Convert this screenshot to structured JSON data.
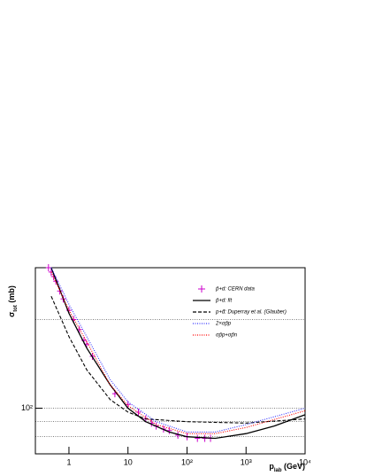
{
  "chart_data": {
    "type": "line",
    "x_label": {
      "main": "p",
      "sub": "lab",
      "unit": " (GeV)"
    },
    "y_label": {
      "main": "σ",
      "sub": "tot",
      "unit": " (mb)"
    },
    "xlog": true,
    "ylog": true,
    "xlim": [
      0.27,
      10000
    ],
    "ylim": [
      70,
      300
    ],
    "xticks": [
      1,
      10,
      {
        "value": 100,
        "label": "10²"
      },
      {
        "value": 1000,
        "label": "10³"
      },
      {
        "value": 10000,
        "label": "10⁴"
      }
    ],
    "yticks": [
      {
        "value": 100,
        "label": "10²"
      }
    ],
    "hlines": [
      200,
      100,
      90,
      80
    ],
    "legend": "top-right",
    "series": [
      {
        "name": "p̄+d: CERN data",
        "color": "#cc00cc",
        "style": "marker",
        "x": [
          0.45,
          0.5,
          0.55,
          0.6,
          0.7,
          0.8,
          1.0,
          1.2,
          1.5,
          1.8,
          2.0,
          2.5,
          6,
          10,
          15,
          20,
          25,
          30,
          40,
          50,
          70,
          100,
          150,
          200,
          250
        ],
        "values": [
          300,
          290,
          280,
          270,
          250,
          235,
          215,
          200,
          185,
          170,
          165,
          150,
          112,
          103,
          97,
          92,
          89,
          87,
          85,
          84,
          81,
          80,
          79,
          79,
          79
        ]
      },
      {
        "name": "p̄+d: fit",
        "color": "#000000",
        "style": "solid",
        "x": [
          0.5,
          1,
          2,
          5,
          10,
          20,
          50,
          100,
          300,
          1000,
          3000,
          10000
        ],
        "values": [
          300,
          210,
          160,
          120,
          100,
          90,
          83,
          80,
          79,
          82,
          87,
          95
        ]
      },
      {
        "name": "p+d̄: Duperray et al. (Glauber)",
        "color": "#000000",
        "style": "dashed",
        "x": [
          0.5,
          1,
          2,
          5,
          10,
          20,
          100,
          1000,
          10000
        ],
        "values": [
          240,
          175,
          135,
          107,
          97,
          92,
          90,
          89,
          92
        ]
      },
      {
        "name": "2×σp̄p",
        "color": "#3333ff",
        "style": "dotted",
        "x": [
          0.5,
          1,
          2,
          5,
          10,
          30,
          100,
          300,
          1000,
          10000
        ],
        "values": [
          300,
          225,
          175,
          125,
          105,
          90,
          83,
          83,
          88,
          100
        ]
      },
      {
        "name": "σp̄p+σp̄n",
        "color": "#ff0000",
        "style": "dotted",
        "x": [
          0.5,
          1,
          2,
          5,
          10,
          30,
          100,
          300,
          1000,
          10000
        ],
        "values": [
          290,
          215,
          168,
          120,
          102,
          88,
          82,
          82,
          86,
          98
        ]
      }
    ]
  }
}
